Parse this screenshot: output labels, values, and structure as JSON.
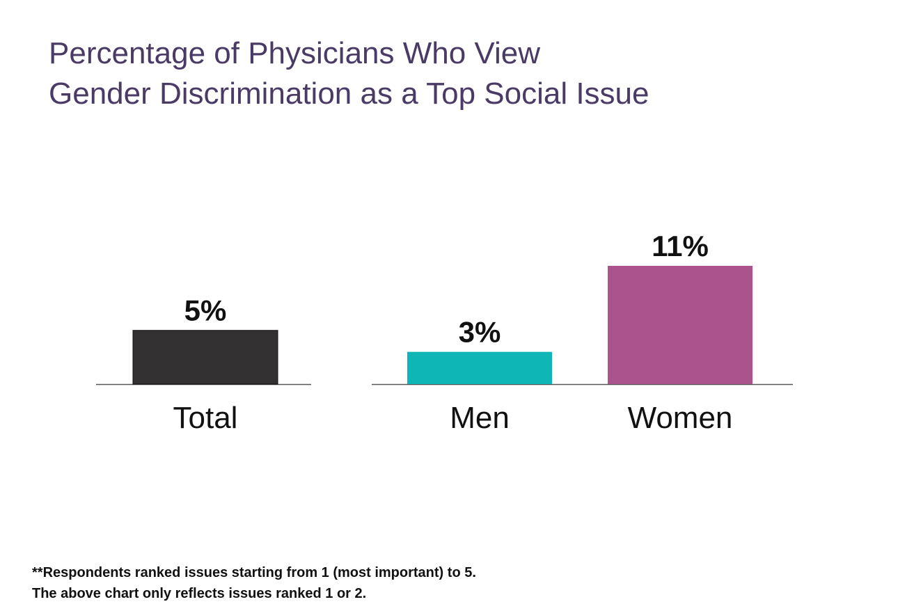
{
  "title": {
    "line1": "Percentage of Physicians Who View",
    "line2": "Gender Discrimination as a Top Social Issue"
  },
  "chart_data": {
    "type": "bar",
    "categories": [
      "Total",
      "Men",
      "Women"
    ],
    "values": [
      5,
      3,
      11
    ],
    "data_labels": [
      "5%",
      "3%",
      "11%"
    ],
    "colors": [
      "#333132",
      "#0fb6b6",
      "#ab538d"
    ],
    "groups": [
      [
        "Total"
      ],
      [
        "Men",
        "Women"
      ]
    ],
    "title": "Percentage of Physicians Who View Gender Discrimination as a Top Social Issue",
    "xlabel": "",
    "ylabel": "",
    "ylim": [
      0,
      11
    ],
    "grid": false,
    "legend": "none"
  },
  "footnote": {
    "line1": "**Respondents ranked issues starting from 1 (most important) to 5.",
    "line2": "The above chart only reflects issues ranked 1 or 2."
  }
}
